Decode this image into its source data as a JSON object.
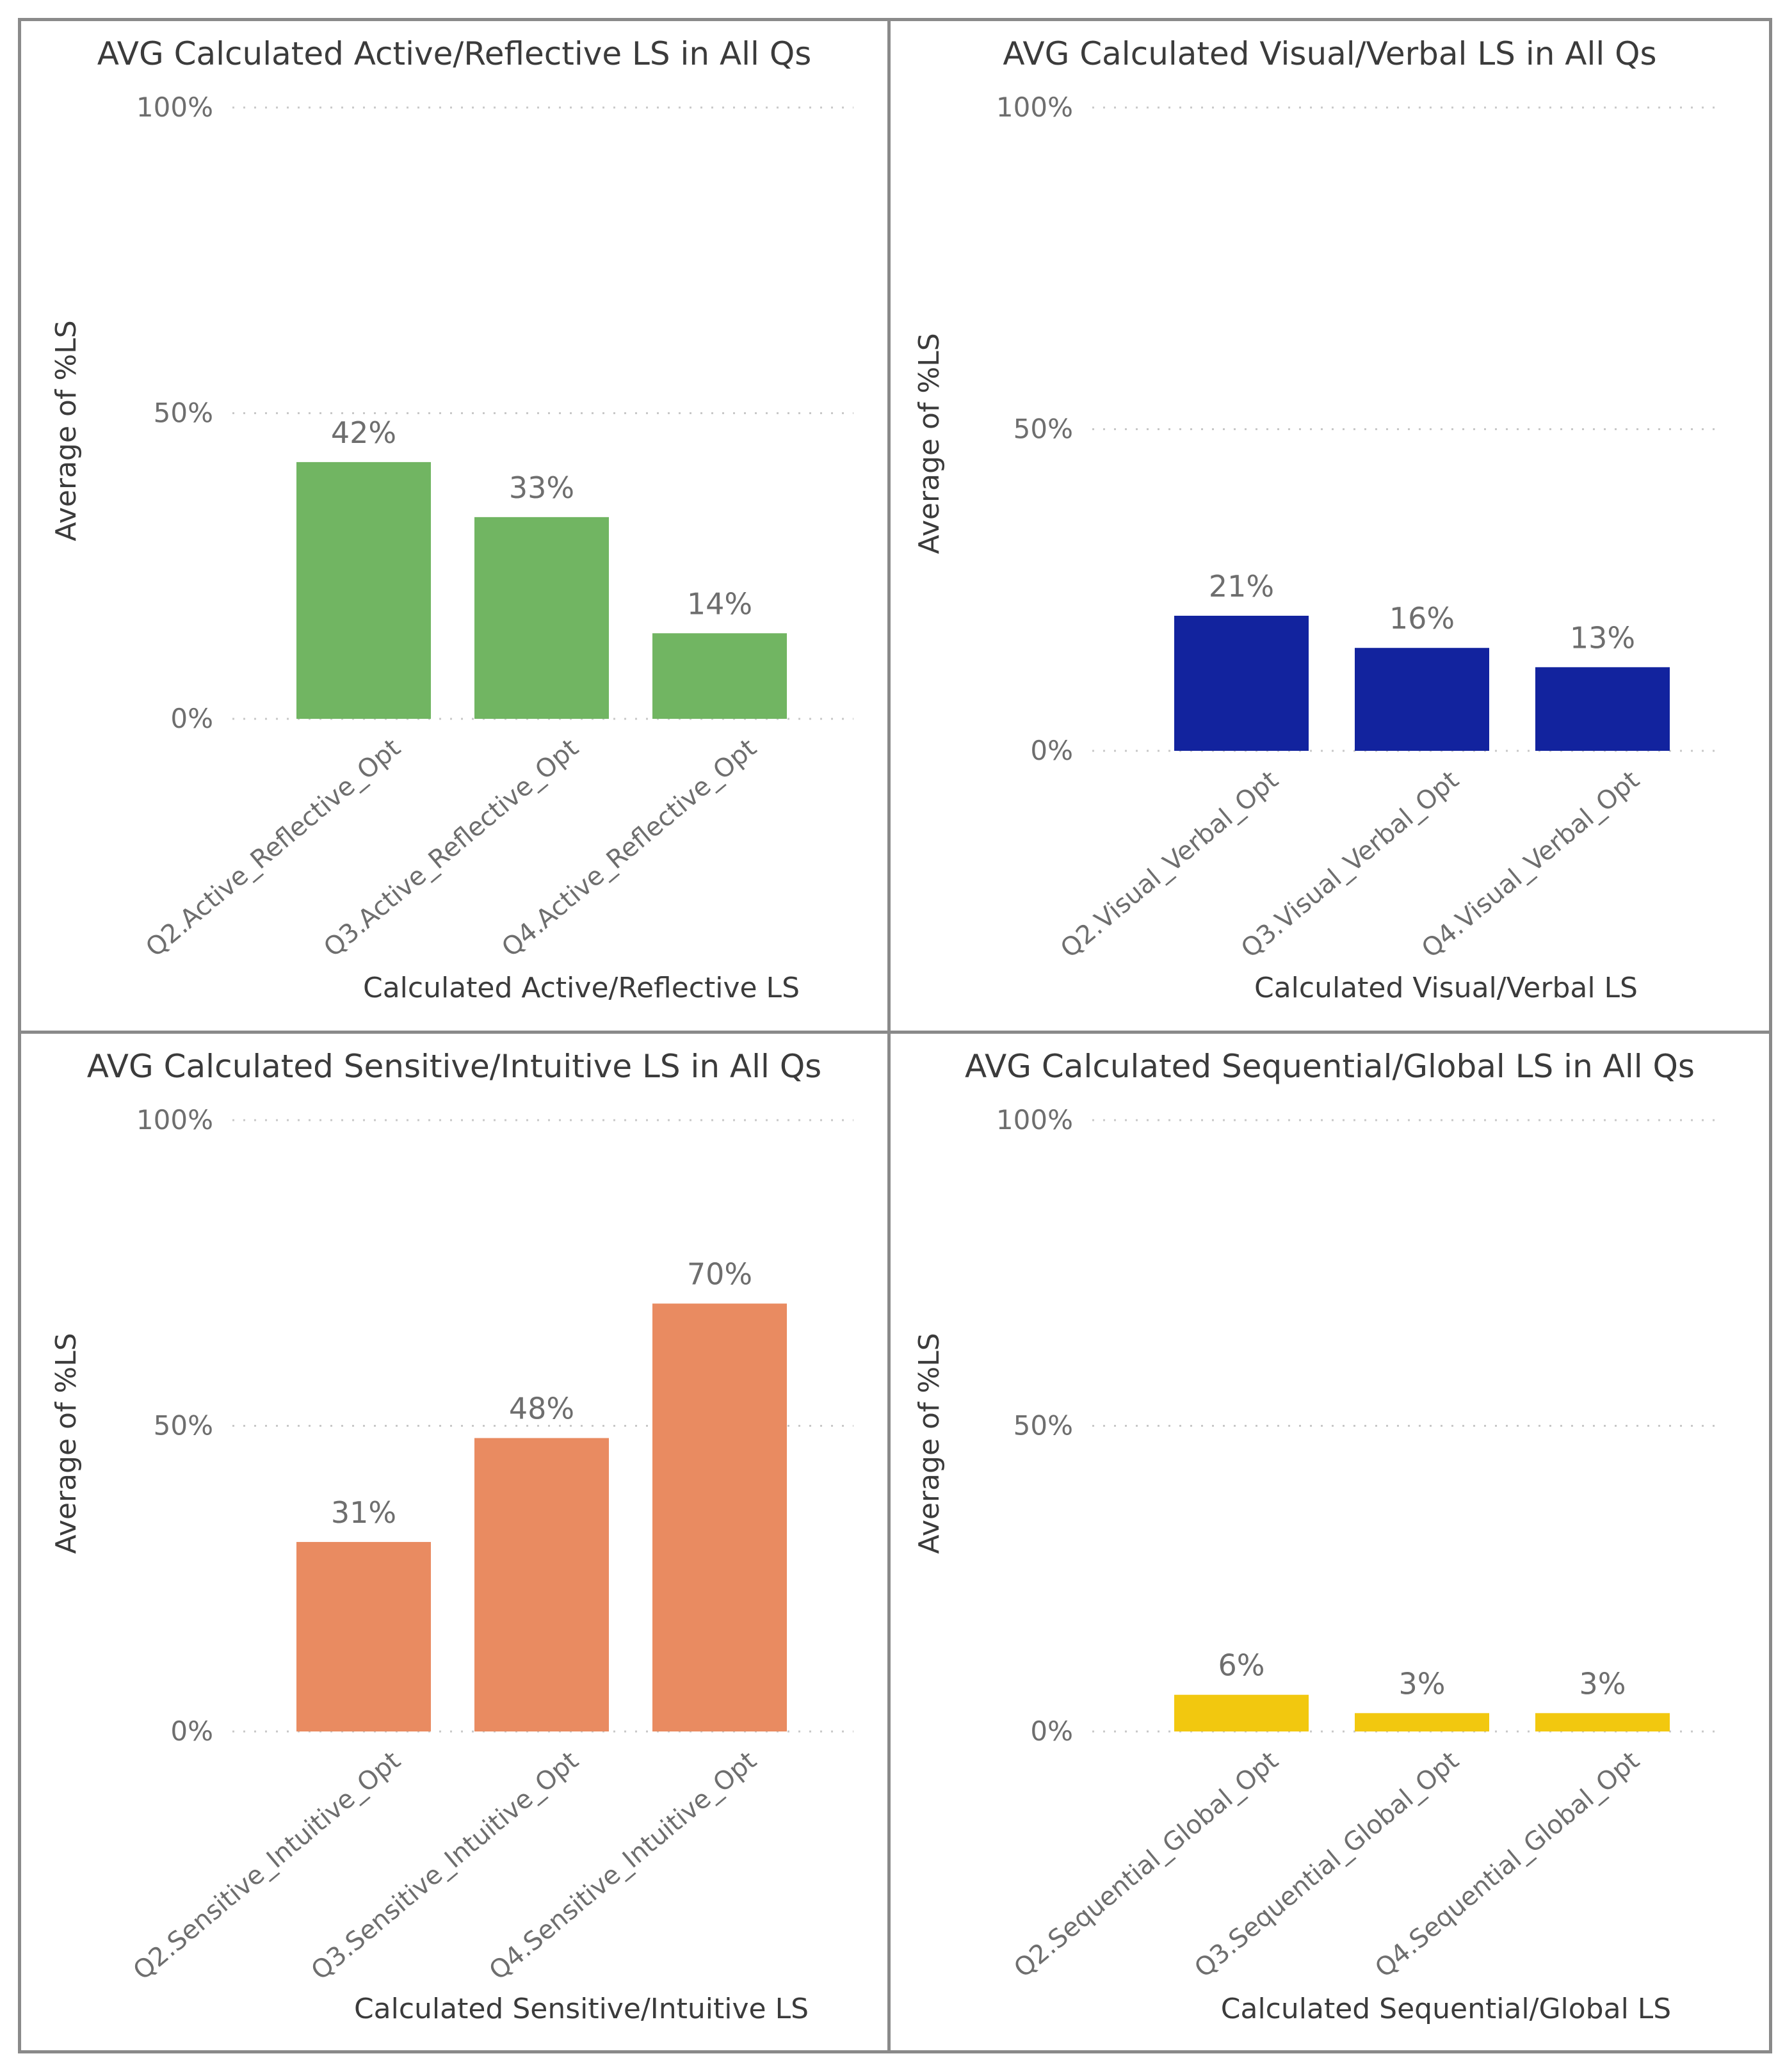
{
  "chart_data": [
    {
      "type": "bar",
      "title": "AVG Calculated Active/Reflective LS in All Qs",
      "xlabel": "Calculated Active/Reflective LS",
      "ylabel": "Average of %LS",
      "categories": [
        "Q2.Active_Reflective_Opt",
        "Q3.Active_Reflective_Opt",
        "Q4.Active_Reflective_Opt"
      ],
      "values": [
        42,
        33,
        14
      ],
      "value_labels": [
        "42%",
        "33%",
        "14%"
      ],
      "ylim": [
        0,
        100
      ],
      "yticks": [
        "0%",
        "50%",
        "100%"
      ],
      "color": "#71b562",
      "grid": true
    },
    {
      "type": "bar",
      "title": "AVG Calculated Visual/Verbal LS in All Qs",
      "xlabel": "Calculated Visual/Verbal LS",
      "ylabel": "Average of %LS",
      "categories": [
        "Q2.Visual_Verbal_Opt",
        "Q3.Visual_Verbal_Opt",
        "Q4.Visual_Verbal_Opt"
      ],
      "values": [
        21,
        16,
        13
      ],
      "value_labels": [
        "21%",
        "16%",
        "13%"
      ],
      "ylim": [
        0,
        100
      ],
      "yticks": [
        "0%",
        "50%",
        "100%"
      ],
      "color": "#12239e",
      "grid": true
    },
    {
      "type": "bar",
      "title": "AVG Calculated Sensitive/Intuitive LS in All Qs",
      "xlabel": "Calculated Sensitive/Intuitive LS",
      "ylabel": "Average of %LS",
      "categories": [
        "Q2.Sensitive_Intuitive_Opt",
        "Q3.Sensitive_Intuitive_Opt",
        "Q4.Sensitive_Intuitive_Opt"
      ],
      "values": [
        31,
        48,
        70
      ],
      "value_labels": [
        "31%",
        "48%",
        "70%"
      ],
      "ylim": [
        0,
        100
      ],
      "yticks": [
        "0%",
        "50%",
        "100%"
      ],
      "color": "#e98b61",
      "grid": true
    },
    {
      "type": "bar",
      "title": "AVG Calculated Sequential/Global LS in All Qs",
      "xlabel": "Calculated Sequential/Global LS",
      "ylabel": "Average of %LS",
      "categories": [
        "Q2.Sequential_Global_Opt",
        "Q3.Sequential_Global_Opt",
        "Q4.Sequential_Global_Opt"
      ],
      "values": [
        6,
        3,
        3
      ],
      "value_labels": [
        "6%",
        "3%",
        "3%"
      ],
      "ylim": [
        0,
        100
      ],
      "yticks": [
        "0%",
        "50%",
        "100%"
      ],
      "color": "#f2c80f",
      "grid": true
    }
  ]
}
